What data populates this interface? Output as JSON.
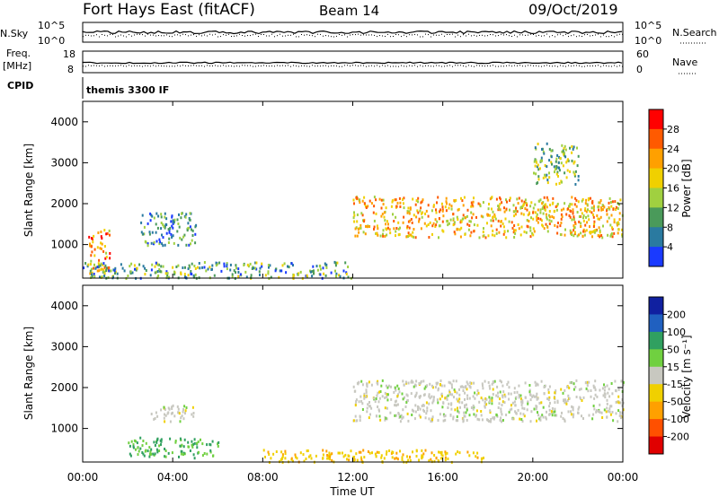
{
  "header": {
    "station": "Fort Hays East (fitACF)",
    "beam": "Beam 14",
    "date": "09/Oct/2019"
  },
  "panels": {
    "nsky": {
      "left_label": "N.Sky",
      "right_label": "N.Search",
      "left_ticks": [
        "10^5",
        "10^0"
      ],
      "right_ticks": [
        "10^5",
        "10^0"
      ]
    },
    "freq": {
      "left_label_1": "Freq.",
      "left_label_2": "[MHz]",
      "right_label": "Nave",
      "left_ticks": [
        "18",
        "8"
      ],
      "right_ticks": [
        "60",
        "0"
      ]
    },
    "cpid": {
      "label": "CPID",
      "text": "themis 3300 IF"
    }
  },
  "power_bar": {
    "label": "Power [dB]",
    "ticks": [
      "28",
      "24",
      "20",
      "16",
      "12",
      "8",
      "4"
    ],
    "colors": [
      "#ff0000",
      "#ff5a00",
      "#ffa000",
      "#f0d000",
      "#a0d040",
      "#4a9a5a",
      "#2a7aa0",
      "#1a3aff"
    ]
  },
  "velocity_bar": {
    "label": "Velocity [m s⁻¹]",
    "ticks": [
      "200",
      "100",
      "50",
      "15",
      "-15",
      "-50",
      "-100",
      "-200"
    ],
    "colors": [
      "#1020a0",
      "#2060c0",
      "#30a060",
      "#70d040",
      "#c8c8c0",
      "#f0d000",
      "#ffa000",
      "#ff5000",
      "#e00000"
    ]
  },
  "chart_data": {
    "type": "heatmap",
    "x_axis": {
      "label": "Time UT",
      "ticks": [
        "00:00",
        "04:00",
        "08:00",
        "12:00",
        "16:00",
        "20:00",
        "00:00"
      ],
      "range_hours": [
        0,
        24
      ]
    },
    "y_axis": {
      "label": "Slant Range [km]",
      "ticks": [
        "1000",
        "2000",
        "3000",
        "4000"
      ],
      "range_km": [
        180,
        4500
      ]
    },
    "power_regions": [
      {
        "t": [
          12.0,
          24.0
        ],
        "r": [
          1200,
          2200
        ],
        "dB": 20
      },
      {
        "t": [
          0.2,
          1.2
        ],
        "r": [
          300,
          1400
        ],
        "dB": 22
      },
      {
        "t": [
          20.0,
          22.0
        ],
        "r": [
          2500,
          3500
        ],
        "dB": 12
      },
      {
        "t": [
          0.0,
          12.0
        ],
        "r": [
          200,
          600
        ],
        "dB": 10
      },
      {
        "t": [
          2.5,
          5.0
        ],
        "r": [
          1000,
          1800
        ],
        "dB": 8
      }
    ],
    "velocity_regions": [
      {
        "t": [
          12.0,
          24.0
        ],
        "r": [
          1200,
          2200
        ],
        "v": 0
      },
      {
        "t": [
          2.0,
          6.0
        ],
        "r": [
          300,
          800
        ],
        "v": 50
      },
      {
        "t": [
          8.0,
          18.0
        ],
        "r": [
          200,
          500
        ],
        "v": -40
      },
      {
        "t": [
          3.0,
          5.0
        ],
        "r": [
          1200,
          1600
        ],
        "v": 0
      }
    ]
  }
}
